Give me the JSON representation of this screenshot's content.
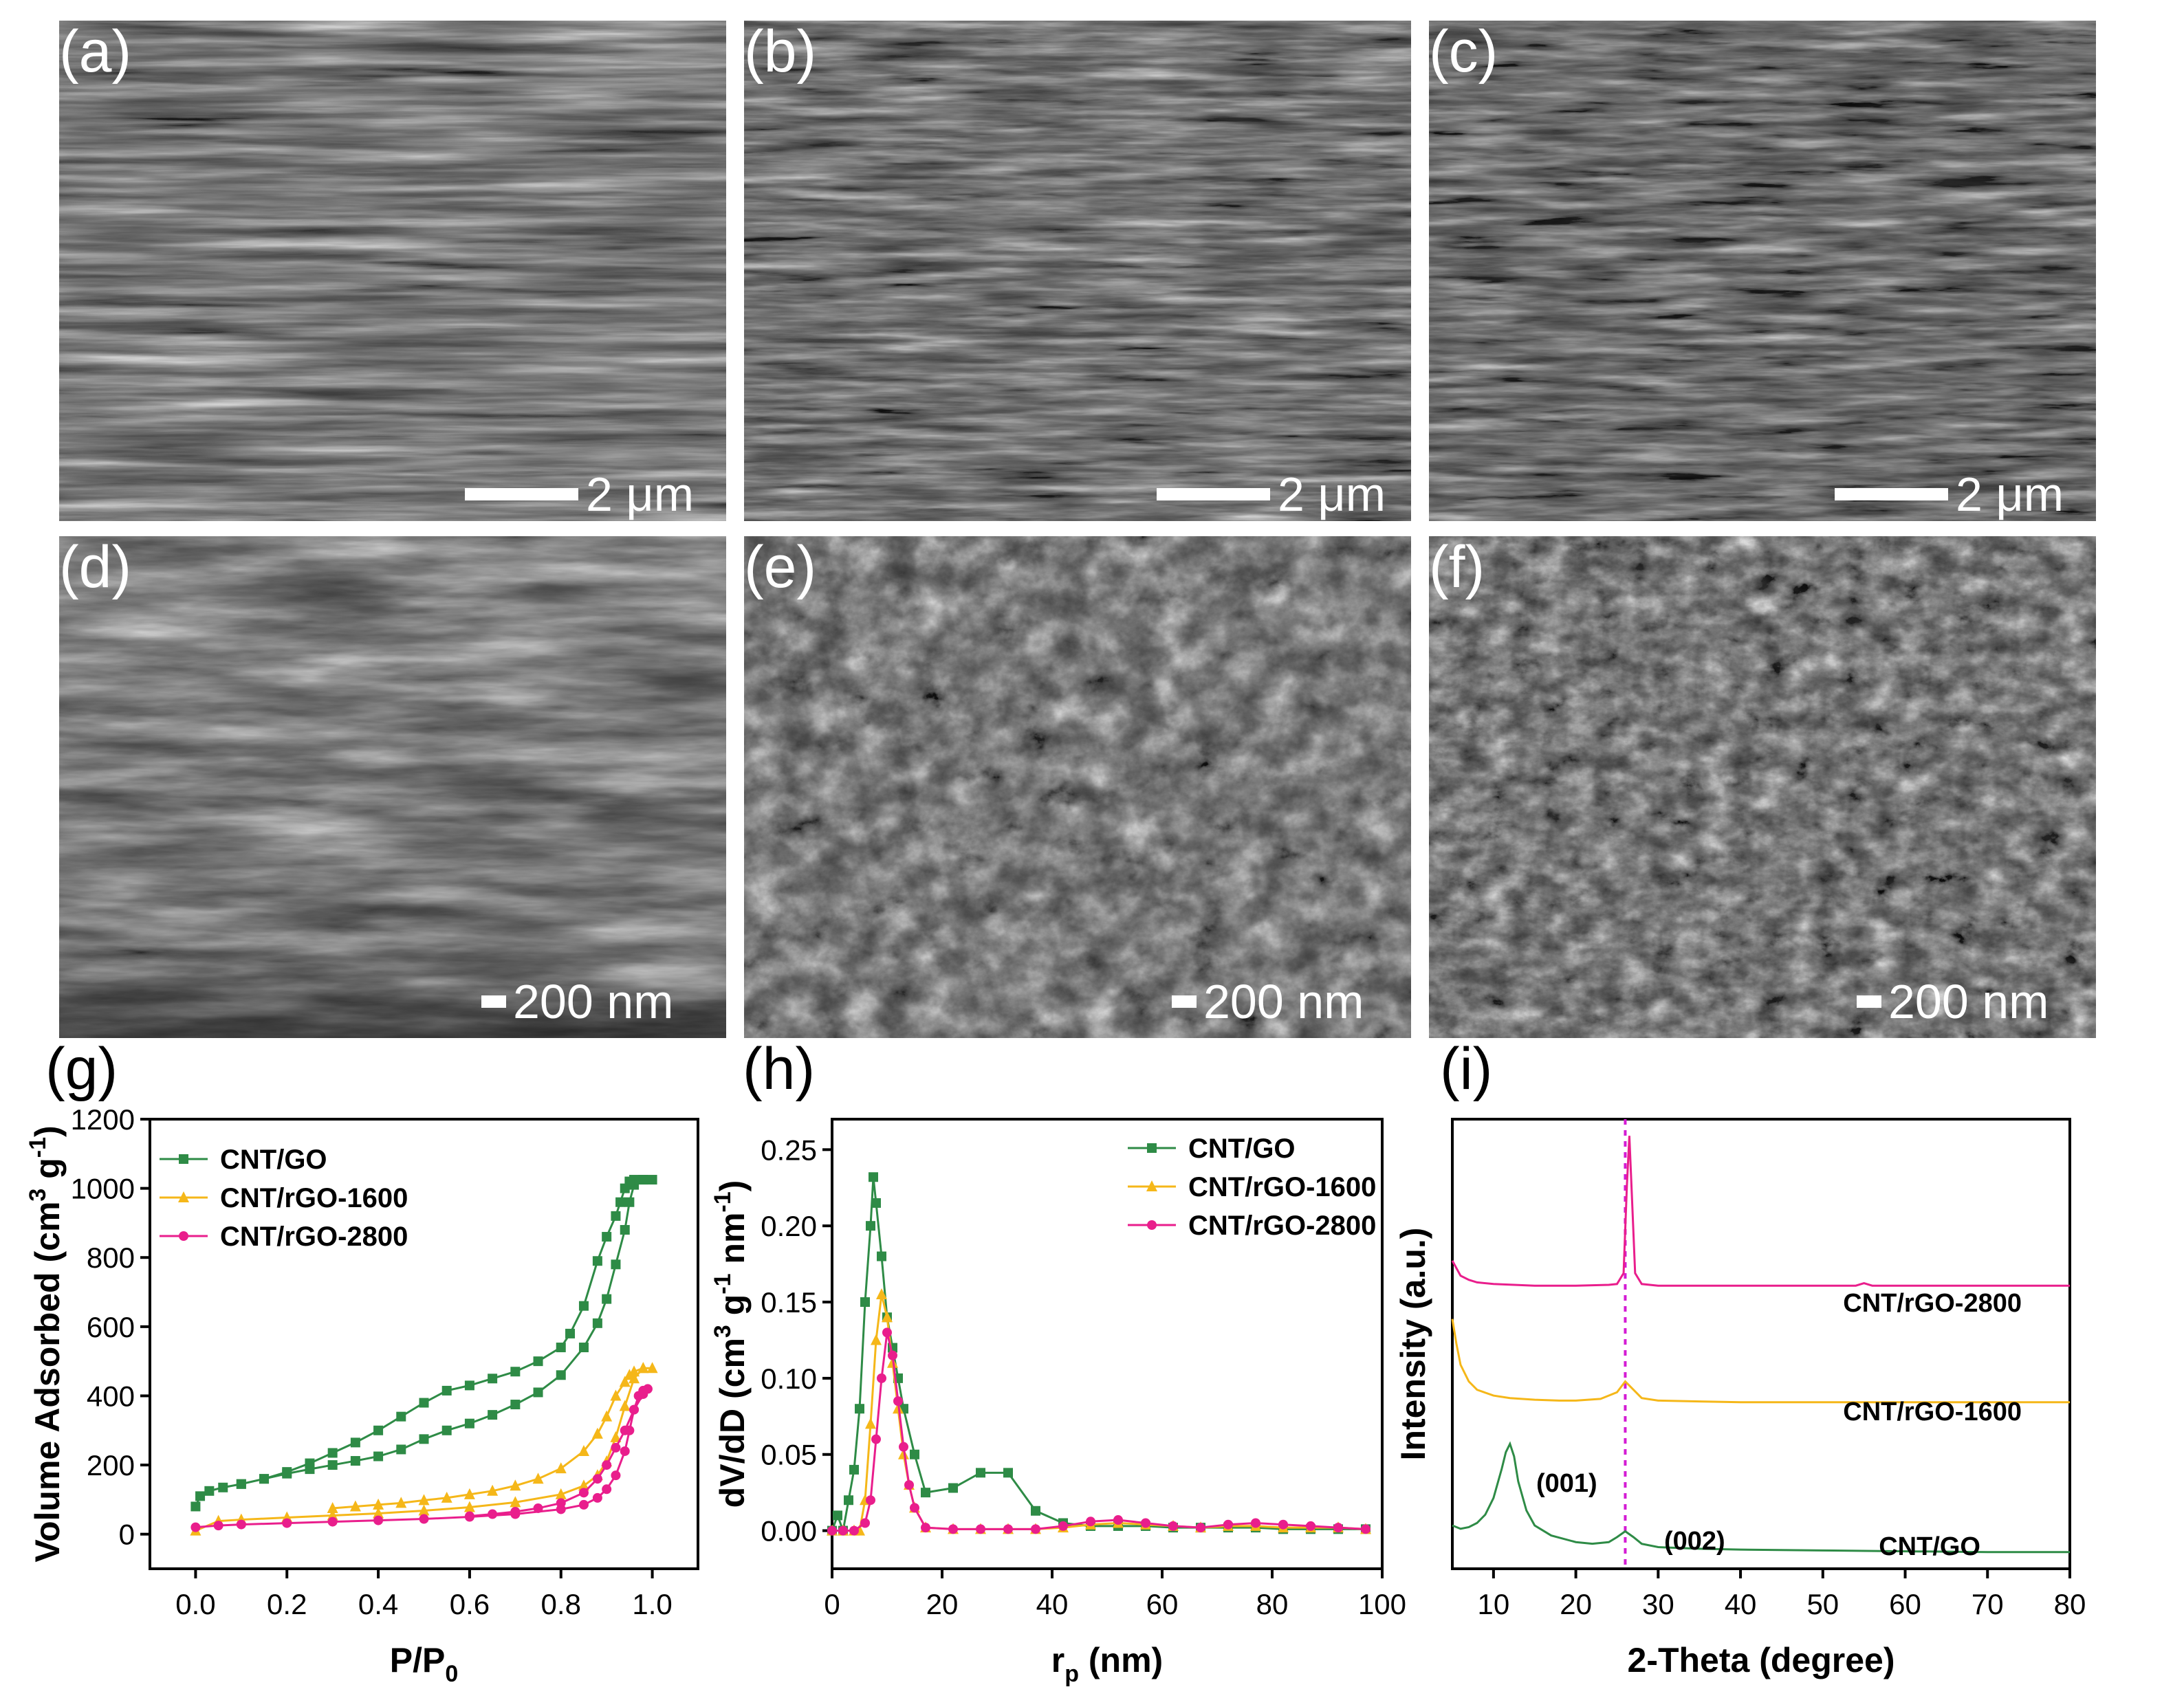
{
  "sem_panels": [
    {
      "label": "(a)",
      "scale": "2 μm",
      "tone": "layered"
    },
    {
      "label": "(b)",
      "scale": "2 μm",
      "tone": "fibrous"
    },
    {
      "label": "(c)",
      "scale": "2 μm",
      "tone": "fibrous-dark"
    },
    {
      "label": "(d)",
      "scale": "200 nm",
      "tone": "bright-layers"
    },
    {
      "label": "(e)",
      "scale": "200 nm",
      "tone": "tangled"
    },
    {
      "label": "(f)",
      "scale": "200 nm",
      "tone": "dense"
    }
  ],
  "graph_labels": {
    "g": "(g)",
    "h": "(h)",
    "i": "(i)"
  },
  "chart_data": [
    {
      "type": "line",
      "panel": "(g)",
      "xlabel": "P/P0",
      "ylabel": "Volume Adsorbed (cm3 g-1)",
      "xlim": [
        -0.1,
        1.1
      ],
      "ylim": [
        -100,
        1200
      ],
      "xticks": [
        0.0,
        0.2,
        0.4,
        0.6,
        0.8,
        1.0
      ],
      "xtick_labels": [
        "0.0",
        "0.2",
        "0.4",
        "0.6",
        "0.8",
        "1.0"
      ],
      "yticks": [
        0,
        200,
        400,
        600,
        800,
        1000,
        1200
      ],
      "ytick_labels": [
        "0",
        "200",
        "400",
        "600",
        "800",
        "1000",
        "1200"
      ],
      "legend_position": "top-left",
      "series": [
        {
          "name": "CNT/GO",
          "color": "#2e8b46",
          "marker": "square",
          "x": [
            0.0,
            0.01,
            0.03,
            0.06,
            0.1,
            0.15,
            0.2,
            0.25,
            0.3,
            0.35,
            0.4,
            0.45,
            0.5,
            0.55,
            0.6,
            0.65,
            0.7,
            0.75,
            0.8,
            0.85,
            0.88,
            0.9,
            0.92,
            0.94,
            0.95,
            0.96,
            0.98,
            1.0,
            0.98,
            0.96,
            0.95,
            0.94,
            0.93,
            0.92,
            0.9,
            0.88,
            0.85,
            0.82,
            0.8,
            0.75,
            0.7,
            0.65,
            0.6,
            0.55,
            0.5,
            0.45,
            0.4,
            0.35,
            0.3,
            0.25,
            0.2,
            0.15,
            0.1
          ],
          "y": [
            80,
            110,
            125,
            135,
            145,
            160,
            175,
            188,
            200,
            212,
            225,
            245,
            275,
            300,
            320,
            345,
            375,
            410,
            460,
            540,
            610,
            680,
            780,
            880,
            960,
            1010,
            1025,
            1025,
            1025,
            1025,
            1020,
            1000,
            960,
            920,
            860,
            790,
            660,
            580,
            540,
            500,
            470,
            450,
            430,
            415,
            380,
            340,
            300,
            265,
            235,
            205,
            180,
            160,
            145
          ]
        },
        {
          "name": "CNT/rGO-1600",
          "color": "#f5b719",
          "marker": "triangle",
          "x": [
            0.0,
            0.05,
            0.1,
            0.2,
            0.3,
            0.4,
            0.5,
            0.6,
            0.7,
            0.8,
            0.85,
            0.88,
            0.9,
            0.92,
            0.94,
            0.96,
            0.98,
            1.0,
            0.98,
            0.96,
            0.95,
            0.94,
            0.92,
            0.9,
            0.88,
            0.85,
            0.8,
            0.75,
            0.7,
            0.65,
            0.6,
            0.55,
            0.5,
            0.45,
            0.4,
            0.35,
            0.3
          ],
          "y": [
            10,
            38,
            42,
            48,
            54,
            60,
            68,
            78,
            92,
            115,
            140,
            170,
            210,
            280,
            370,
            450,
            480,
            480,
            480,
            470,
            460,
            440,
            400,
            340,
            290,
            240,
            190,
            160,
            140,
            125,
            115,
            105,
            98,
            90,
            85,
            80,
            75
          ]
        },
        {
          "name": "CNT/rGO-2800",
          "color": "#e91e8c",
          "marker": "circle",
          "x": [
            0.0,
            0.05,
            0.1,
            0.2,
            0.3,
            0.4,
            0.5,
            0.6,
            0.7,
            0.8,
            0.85,
            0.88,
            0.9,
            0.92,
            0.94,
            0.95,
            0.96,
            0.97,
            0.98,
            0.99,
            0.98,
            0.96,
            0.94,
            0.92,
            0.9,
            0.88,
            0.85,
            0.8,
            0.75,
            0.7,
            0.65,
            0.6
          ],
          "y": [
            20,
            25,
            28,
            32,
            36,
            40,
            44,
            50,
            58,
            72,
            85,
            105,
            130,
            170,
            240,
            300,
            360,
            400,
            415,
            420,
            405,
            360,
            300,
            250,
            200,
            160,
            120,
            90,
            75,
            65,
            58,
            52
          ]
        }
      ]
    },
    {
      "type": "line",
      "panel": "(h)",
      "xlabel": "rp (nm)",
      "ylabel": "dV/dD (cm3 g-1 nm-1)",
      "xlim": [
        0,
        100
      ],
      "ylim": [
        -0.025,
        0.27
      ],
      "xticks": [
        0,
        20,
        40,
        60,
        80,
        100
      ],
      "xtick_labels": [
        "0",
        "20",
        "40",
        "60",
        "80",
        "100"
      ],
      "yticks": [
        0.0,
        0.05,
        0.1,
        0.15,
        0.2,
        0.25
      ],
      "ytick_labels": [
        "0.00",
        "0.05",
        "0.10",
        "0.15",
        "0.20",
        "0.25"
      ],
      "legend_position": "top-right",
      "series": [
        {
          "name": "CNT/GO",
          "color": "#2e8b46",
          "marker": "square",
          "x": [
            0,
            1,
            2,
            3,
            4,
            5,
            6,
            7,
            7.5,
            8,
            9,
            10,
            11,
            12,
            13,
            15,
            17,
            22,
            27,
            32,
            37,
            42,
            47,
            52,
            57,
            62,
            67,
            72,
            77,
            82,
            87,
            92,
            97
          ],
          "y": [
            0.0,
            0.01,
            0.0,
            0.02,
            0.04,
            0.08,
            0.15,
            0.2,
            0.232,
            0.215,
            0.18,
            0.14,
            0.12,
            0.1,
            0.08,
            0.05,
            0.025,
            0.028,
            0.038,
            0.038,
            0.013,
            0.005,
            0.003,
            0.003,
            0.003,
            0.002,
            0.002,
            0.002,
            0.002,
            0.001,
            0.001,
            0.001,
            0.001
          ]
        },
        {
          "name": "CNT/rGO-1600",
          "color": "#f5b719",
          "marker": "triangle",
          "x": [
            0,
            2,
            4,
            5,
            6,
            7,
            8,
            9,
            10,
            11,
            12,
            13,
            14,
            15,
            17,
            22,
            27,
            32,
            37,
            42,
            47,
            52,
            57,
            62,
            67,
            72,
            77,
            82,
            87,
            92,
            97
          ],
          "y": [
            0.0,
            0.0,
            0.0,
            0.0,
            0.02,
            0.07,
            0.125,
            0.155,
            0.14,
            0.11,
            0.08,
            0.05,
            0.03,
            0.015,
            0.002,
            0.001,
            0.001,
            0.001,
            0.001,
            0.002,
            0.004,
            0.005,
            0.004,
            0.003,
            0.002,
            0.003,
            0.003,
            0.002,
            0.002,
            0.002,
            0.001
          ]
        },
        {
          "name": "CNT/rGO-2800",
          "color": "#e91e8c",
          "marker": "circle",
          "x": [
            0,
            2,
            4,
            6,
            7,
            8,
            9,
            10,
            11,
            12,
            13,
            14,
            15,
            17,
            22,
            27,
            32,
            37,
            42,
            47,
            52,
            57,
            62,
            67,
            72,
            77,
            82,
            87,
            92,
            97
          ],
          "y": [
            0.0,
            0.0,
            0.0,
            0.005,
            0.02,
            0.06,
            0.1,
            0.13,
            0.115,
            0.085,
            0.055,
            0.03,
            0.015,
            0.002,
            0.001,
            0.001,
            0.001,
            0.001,
            0.003,
            0.006,
            0.007,
            0.005,
            0.003,
            0.002,
            0.004,
            0.005,
            0.004,
            0.003,
            0.002,
            0.001
          ]
        }
      ]
    },
    {
      "type": "line",
      "panel": "(i)",
      "xlabel": "2-Theta (degree)",
      "ylabel": "Intensity (a.u.)",
      "xlim": [
        5,
        80
      ],
      "ylim": [
        -0.2,
        5.2
      ],
      "xticks": [
        10,
        20,
        30,
        40,
        50,
        60,
        70,
        80
      ],
      "xtick_labels": [
        "10",
        "20",
        "30",
        "40",
        "50",
        "60",
        "70",
        "80"
      ],
      "y_ticks_shown": false,
      "reference_line": {
        "x": 26,
        "style": "dotted",
        "color": "#d41cd4"
      },
      "annotations": [
        "(001)",
        "(002)"
      ],
      "series": [
        {
          "name": "CNT/rGO-2800",
          "color": "#e91e8c",
          "x": [
            5,
            6,
            7,
            8,
            10,
            15,
            20,
            24,
            25,
            25.8,
            26.2,
            26.5,
            26.8,
            27.2,
            28,
            30,
            40,
            50,
            54,
            55,
            56,
            60,
            70,
            80
          ],
          "y": [
            3.5,
            3.32,
            3.27,
            3.24,
            3.22,
            3.2,
            3.2,
            3.21,
            3.22,
            3.35,
            4.4,
            5.0,
            4.3,
            3.35,
            3.22,
            3.2,
            3.2,
            3.2,
            3.2,
            3.23,
            3.2,
            3.2,
            3.2,
            3.2
          ]
        },
        {
          "name": "CNT/rGO-1600",
          "color": "#f5b719",
          "x": [
            5,
            5.5,
            6,
            7,
            8,
            10,
            12,
            15,
            18,
            20,
            23,
            25,
            26,
            27,
            28,
            30,
            35,
            40,
            50,
            60,
            70,
            80
          ],
          "y": [
            2.8,
            2.5,
            2.25,
            2.05,
            1.95,
            1.88,
            1.85,
            1.83,
            1.82,
            1.82,
            1.84,
            1.92,
            2.05,
            1.95,
            1.85,
            1.82,
            1.81,
            1.8,
            1.8,
            1.8,
            1.8,
            1.8
          ]
        },
        {
          "name": "CNT/GO",
          "color": "#2e8b46",
          "x": [
            5,
            6,
            7,
            8,
            9,
            10,
            11,
            11.5,
            12,
            12.5,
            13,
            14,
            15,
            17,
            20,
            22,
            24,
            25,
            26,
            27,
            28,
            30,
            35,
            40,
            50,
            60,
            70,
            80
          ],
          "y": [
            0.32,
            0.28,
            0.3,
            0.35,
            0.45,
            0.65,
            1.0,
            1.2,
            1.3,
            1.15,
            0.85,
            0.5,
            0.32,
            0.2,
            0.12,
            0.1,
            0.12,
            0.18,
            0.25,
            0.18,
            0.1,
            0.06,
            0.04,
            0.03,
            0.02,
            0.01,
            0.0,
            0.0
          ]
        }
      ],
      "series_labels": [
        "CNT/rGO-2800",
        "CNT/rGO-1600",
        "CNT/GO"
      ]
    }
  ]
}
